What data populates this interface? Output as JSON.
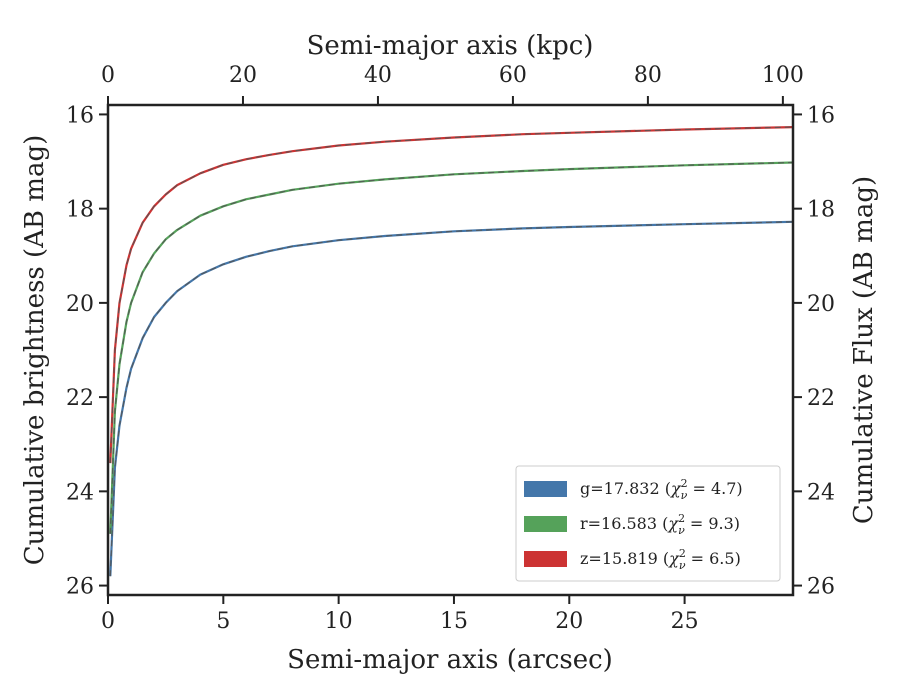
{
  "chart_data": {
    "type": "line",
    "title": "",
    "xlabel": "Semi-major axis (arcsec)",
    "xlabel_top": "Semi-major axis (kpc)",
    "ylabel": "Cumulative brightness (AB mag)",
    "ylabel_right": "Cumulative Flux (AB mag)",
    "xlim": [
      0,
      29.7
    ],
    "xlim_top": [
      0,
      101.5
    ],
    "ylim": [
      26.2,
      15.8
    ],
    "y_inverted": true,
    "grid": false,
    "legend_position": "lower-right",
    "x_ticks": [
      0,
      5,
      10,
      15,
      20,
      25
    ],
    "x_ticks_top": [
      0,
      20,
      40,
      60,
      80,
      100
    ],
    "y_ticks": [
      16,
      18,
      20,
      22,
      24,
      26
    ],
    "y_ticks_right": [
      16,
      18,
      20,
      22,
      24,
      26
    ],
    "series": [
      {
        "name": "g=17.832 (χ²ν = 4.7)",
        "label_main": "g=17.832 (",
        "label_chi": "χ",
        "label_sup": "2",
        "label_sub": "ν",
        "label_eq": " = 4.7)",
        "color": "#4477AA",
        "x": [
          0.1,
          0.3,
          0.5,
          0.8,
          1.0,
          1.5,
          2.0,
          2.5,
          3.0,
          4.0,
          5.0,
          6.0,
          7.0,
          8.0,
          10.0,
          12.0,
          15.0,
          18.0,
          20.0,
          25.0,
          29.7
        ],
        "y": [
          25.8,
          23.5,
          22.6,
          21.8,
          21.4,
          20.75,
          20.3,
          20.0,
          19.75,
          19.4,
          19.18,
          19.02,
          18.9,
          18.8,
          18.67,
          18.58,
          18.48,
          18.42,
          18.39,
          18.33,
          18.28
        ]
      },
      {
        "name": "r=16.583 (χ²ν = 9.3)",
        "label_main": "r=16.583 (",
        "label_chi": "χ",
        "label_sup": "2",
        "label_sub": "ν",
        "label_eq": " = 9.3)",
        "color": "#55A25A",
        "x": [
          0.1,
          0.3,
          0.5,
          0.8,
          1.0,
          1.5,
          2.0,
          2.5,
          3.0,
          4.0,
          5.0,
          6.0,
          7.0,
          8.0,
          10.0,
          12.0,
          15.0,
          18.0,
          20.0,
          25.0,
          29.7
        ],
        "y": [
          24.9,
          22.3,
          21.3,
          20.4,
          20.0,
          19.35,
          18.95,
          18.65,
          18.45,
          18.15,
          17.95,
          17.8,
          17.7,
          17.6,
          17.47,
          17.38,
          17.27,
          17.2,
          17.16,
          17.08,
          17.02
        ]
      },
      {
        "name": "z=15.819 (χ²ν = 6.5)",
        "label_main": "z=15.819 (",
        "label_chi": "χ",
        "label_sup": "2",
        "label_sub": "ν",
        "label_eq": " = 6.5)",
        "color": "#CC3333",
        "x": [
          0.1,
          0.3,
          0.5,
          0.8,
          1.0,
          1.5,
          2.0,
          2.5,
          3.0,
          4.0,
          5.0,
          6.0,
          7.0,
          8.0,
          10.0,
          12.0,
          15.0,
          18.0,
          20.0,
          25.0,
          29.7
        ],
        "y": [
          23.4,
          21.0,
          20.0,
          19.2,
          18.85,
          18.3,
          17.95,
          17.7,
          17.5,
          17.25,
          17.07,
          16.95,
          16.86,
          16.78,
          16.66,
          16.58,
          16.49,
          16.42,
          16.39,
          16.32,
          16.27
        ]
      }
    ]
  }
}
